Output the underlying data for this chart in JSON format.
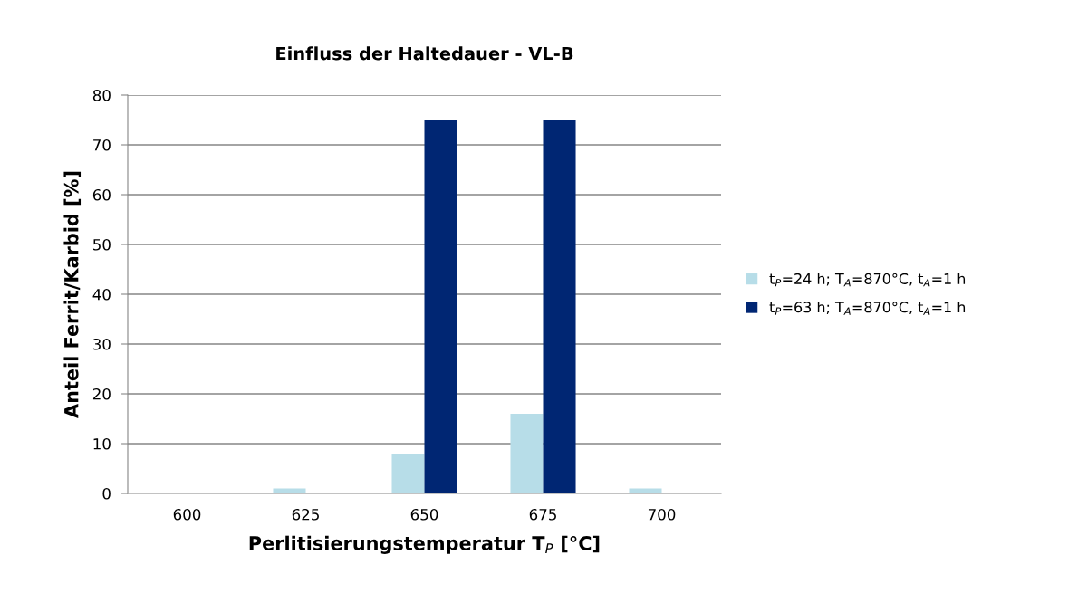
{
  "chart_data": {
    "type": "bar",
    "title": "Einfluss der Haltedauer - VL-B",
    "xlabel": "Perlitisierungstemperatur T$_{P}$ [°C]",
    "ylabel": "Anteil Ferrit/Karbid [%]",
    "categories": [
      "600",
      "625",
      "650",
      "675",
      "700"
    ],
    "series": [
      {
        "name": "t$_{P}$=24 h; T$_{A}$=870°C, t$_{A}$=1 h",
        "color": "#b7dde8",
        "values": [
          0,
          1,
          8,
          16,
          1
        ]
      },
      {
        "name": "t$_{P}$=63 h; T$_{A}$=870°C, t$_{A}$=1 h",
        "color": "#002673",
        "values": [
          0,
          0,
          75,
          75,
          0
        ]
      }
    ],
    "ylim": [
      0,
      80
    ],
    "yticks": [
      0,
      10,
      20,
      30,
      40,
      50,
      60,
      70,
      80
    ],
    "grid": "y",
    "legend": "right"
  }
}
